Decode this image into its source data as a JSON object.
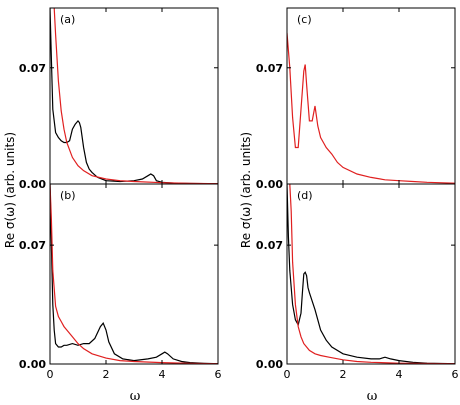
{
  "figure": {
    "ylabel": "Re σ(ω) (arb. units)",
    "xlabel": "ω",
    "colors": {
      "black": "#000000",
      "red": "#e02020"
    }
  },
  "chart_data": [
    {
      "type": "line",
      "panel_label": "(a)",
      "xlim": [
        0,
        6
      ],
      "ylim": [
        0,
        0.106
      ],
      "xticks": [
        0,
        2,
        4,
        6
      ],
      "yticks": [
        0.0,
        0.07
      ],
      "ytick_labels": [
        "0.00",
        "0.07"
      ],
      "series": [
        {
          "color": "black",
          "x": [
            0.0,
            0.05,
            0.1,
            0.2,
            0.3,
            0.4,
            0.5,
            0.6,
            0.7,
            0.8,
            0.9,
            1.0,
            1.05,
            1.1,
            1.2,
            1.3,
            1.4,
            1.5,
            1.7,
            2.0,
            2.5,
            3.0,
            3.3,
            3.5,
            3.6,
            3.7,
            3.8,
            4.0,
            4.5,
            5.0,
            6.0
          ],
          "y": [
            0.106,
            0.075,
            0.045,
            0.031,
            0.028,
            0.026,
            0.025,
            0.025,
            0.026,
            0.033,
            0.036,
            0.038,
            0.037,
            0.034,
            0.022,
            0.013,
            0.009,
            0.007,
            0.004,
            0.002,
            0.0015,
            0.002,
            0.003,
            0.005,
            0.006,
            0.005,
            0.002,
            0.001,
            0.0005,
            0.0003,
            0.0002
          ]
        },
        {
          "color": "red",
          "x": [
            0.15,
            0.2,
            0.3,
            0.4,
            0.5,
            0.6,
            0.8,
            1.0,
            1.2,
            1.5,
            2.0,
            2.5,
            3.0,
            4.0,
            5.0,
            6.0
          ],
          "y": [
            0.106,
            0.09,
            0.062,
            0.044,
            0.033,
            0.025,
            0.016,
            0.011,
            0.008,
            0.005,
            0.003,
            0.002,
            0.0015,
            0.0008,
            0.0004,
            0.0002
          ]
        }
      ]
    },
    {
      "type": "line",
      "panel_label": "(b)",
      "xlim": [
        0,
        6
      ],
      "ylim": [
        0,
        0.106
      ],
      "xticks": [
        0,
        2,
        4,
        6
      ],
      "xtick_labels": [
        "0",
        "2",
        "4",
        "6"
      ],
      "yticks": [
        0.0,
        0.07
      ],
      "ytick_labels": [
        "0.00",
        "0.07"
      ],
      "series": [
        {
          "color": "black",
          "x": [
            0.0,
            0.05,
            0.1,
            0.15,
            0.2,
            0.3,
            0.4,
            0.5,
            0.6,
            0.8,
            1.0,
            1.2,
            1.4,
            1.6,
            1.8,
            1.9,
            2.0,
            2.1,
            2.3,
            2.6,
            3.0,
            3.5,
            3.8,
            4.0,
            4.1,
            4.2,
            4.4,
            4.7,
            5.0,
            5.5,
            6.0
          ],
          "y": [
            0.106,
            0.07,
            0.035,
            0.02,
            0.012,
            0.01,
            0.01,
            0.011,
            0.011,
            0.012,
            0.011,
            0.012,
            0.012,
            0.015,
            0.022,
            0.024,
            0.02,
            0.013,
            0.006,
            0.003,
            0.002,
            0.003,
            0.004,
            0.006,
            0.007,
            0.006,
            0.003,
            0.0015,
            0.0008,
            0.0004,
            0.0002
          ]
        },
        {
          "color": "red",
          "x": [
            0.0,
            0.05,
            0.1,
            0.2,
            0.3,
            0.4,
            0.5,
            0.6,
            0.8,
            1.0,
            1.2,
            1.5,
            2.0,
            2.5,
            3.0,
            4.0,
            5.0,
            6.0
          ],
          "y": [
            0.106,
            0.085,
            0.055,
            0.034,
            0.028,
            0.025,
            0.022,
            0.02,
            0.016,
            0.012,
            0.009,
            0.006,
            0.0035,
            0.002,
            0.0015,
            0.0008,
            0.0004,
            0.0002
          ]
        }
      ]
    },
    {
      "type": "line",
      "panel_label": "(c)",
      "xlim": [
        0,
        6
      ],
      "ylim": [
        0,
        0.106
      ],
      "xticks": [
        0,
        2,
        4,
        6
      ],
      "yticks": [
        0.0,
        0.07
      ],
      "ytick_labels": [
        "0.00",
        "0.07"
      ],
      "series": [
        {
          "color": "red",
          "x": [
            0.0,
            0.1,
            0.2,
            0.3,
            0.4,
            0.5,
            0.6,
            0.65,
            0.7,
            0.8,
            0.9,
            1.0,
            1.1,
            1.2,
            1.3,
            1.4,
            1.6,
            1.8,
            2.0,
            2.5,
            3.0,
            3.5,
            4.0,
            4.5,
            5.0,
            6.0
          ],
          "y": [
            0.091,
            0.07,
            0.04,
            0.022,
            0.022,
            0.045,
            0.068,
            0.072,
            0.06,
            0.038,
            0.038,
            0.047,
            0.035,
            0.028,
            0.025,
            0.022,
            0.018,
            0.013,
            0.01,
            0.006,
            0.004,
            0.0025,
            0.002,
            0.0015,
            0.001,
            0.0005
          ]
        }
      ]
    },
    {
      "type": "line",
      "panel_label": "(d)",
      "xlim": [
        0,
        6
      ],
      "ylim": [
        0,
        0.106
      ],
      "xticks": [
        0,
        2,
        4,
        6
      ],
      "xtick_labels": [
        "0",
        "2",
        "4",
        "6"
      ],
      "yticks": [
        0.0,
        0.07
      ],
      "ytick_labels": [
        "0.00",
        "0.07"
      ],
      "series": [
        {
          "color": "black",
          "x": [
            0.0,
            0.05,
            0.1,
            0.2,
            0.3,
            0.4,
            0.5,
            0.55,
            0.6,
            0.65,
            0.7,
            0.75,
            0.8,
            0.9,
            1.0,
            1.1,
            1.2,
            1.4,
            1.6,
            2.0,
            2.5,
            3.0,
            3.3,
            3.5,
            3.7,
            4.0,
            4.5,
            5.0,
            6.0
          ],
          "y": [
            0.106,
            0.075,
            0.055,
            0.035,
            0.026,
            0.023,
            0.03,
            0.042,
            0.053,
            0.054,
            0.052,
            0.045,
            0.042,
            0.037,
            0.032,
            0.026,
            0.02,
            0.014,
            0.01,
            0.006,
            0.004,
            0.003,
            0.003,
            0.004,
            0.003,
            0.002,
            0.001,
            0.0005,
            0.0002
          ]
        },
        {
          "color": "red",
          "x": [
            0.1,
            0.15,
            0.2,
            0.3,
            0.4,
            0.5,
            0.6,
            0.7,
            0.8,
            1.0,
            1.2,
            1.5,
            2.0,
            2.5,
            3.0,
            4.0,
            5.0,
            6.0
          ],
          "y": [
            0.106,
            0.09,
            0.06,
            0.035,
            0.022,
            0.016,
            0.012,
            0.01,
            0.008,
            0.006,
            0.005,
            0.004,
            0.0025,
            0.0015,
            0.001,
            0.0005,
            0.0003,
            0.0002
          ]
        }
      ]
    }
  ]
}
